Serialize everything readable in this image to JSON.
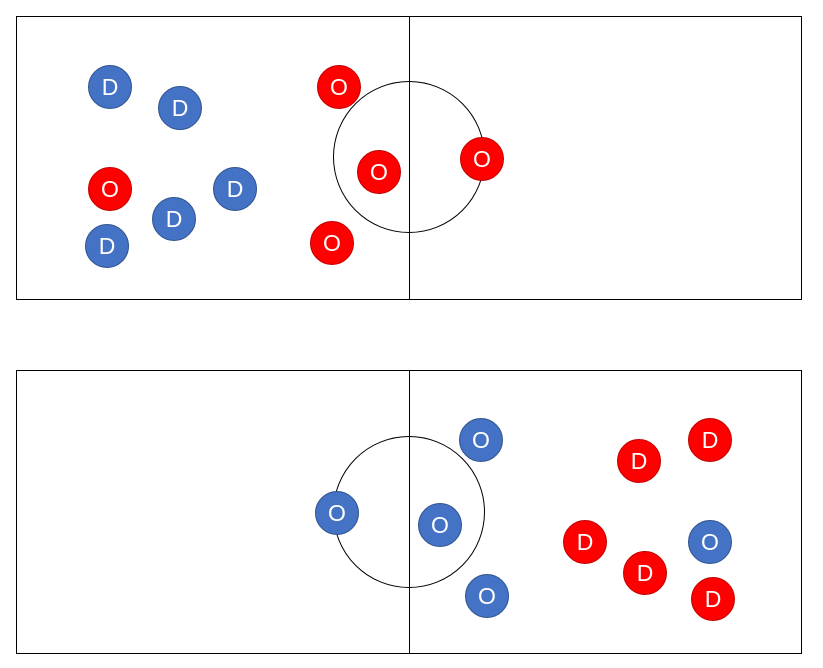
{
  "colors": {
    "blue_team": "#4472c4",
    "red_team": "#ff0000",
    "blue_border": "#2f528f",
    "red_border": "#c00000"
  },
  "fields": [
    {
      "id": "top",
      "players": [
        {
          "label": "D",
          "team": "blue"
        },
        {
          "label": "D",
          "team": "blue"
        },
        {
          "label": "O",
          "team": "red"
        },
        {
          "label": "D",
          "team": "blue"
        },
        {
          "label": "D",
          "team": "blue"
        },
        {
          "label": "D",
          "team": "blue"
        },
        {
          "label": "O",
          "team": "red"
        },
        {
          "label": "O",
          "team": "red"
        },
        {
          "label": "O",
          "team": "red"
        },
        {
          "label": "O",
          "team": "red"
        }
      ]
    },
    {
      "id": "bottom",
      "players": [
        {
          "label": "O",
          "team": "blue"
        },
        {
          "label": "O",
          "team": "blue"
        },
        {
          "label": "O",
          "team": "blue"
        },
        {
          "label": "O",
          "team": "blue"
        },
        {
          "label": "D",
          "team": "red"
        },
        {
          "label": "D",
          "team": "red"
        },
        {
          "label": "D",
          "team": "red"
        },
        {
          "label": "D",
          "team": "red"
        },
        {
          "label": "O",
          "team": "blue"
        },
        {
          "label": "D",
          "team": "red"
        }
      ]
    }
  ]
}
